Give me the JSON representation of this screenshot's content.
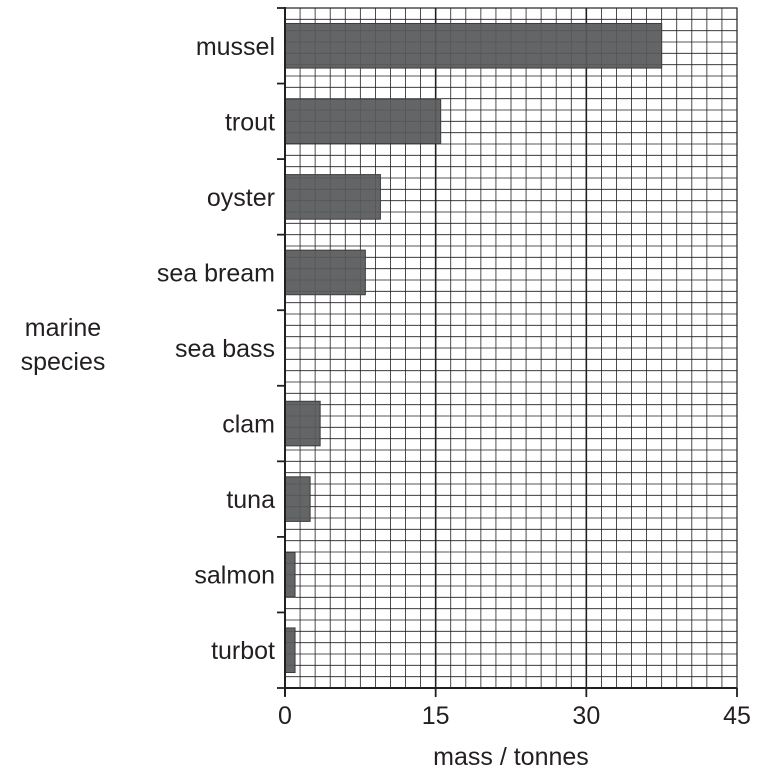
{
  "chart_data": {
    "type": "bar",
    "orientation": "horizontal",
    "categories": [
      "mussel",
      "trout",
      "oyster",
      "sea bream",
      "sea bass",
      "clam",
      "tuna",
      "salmon",
      "turbot"
    ],
    "values": [
      37.5,
      15.5,
      9.5,
      8,
      0,
      3.5,
      2.5,
      1,
      1
    ],
    "xlabel": "mass / tonnes",
    "ylabel_line1": "marine",
    "ylabel_line2": "species",
    "xlim": [
      0,
      45
    ],
    "xticks": [
      "0",
      "15",
      "30",
      "45"
    ],
    "grid": true,
    "bar_color": "#58595b",
    "grid_color": "#231f20"
  }
}
